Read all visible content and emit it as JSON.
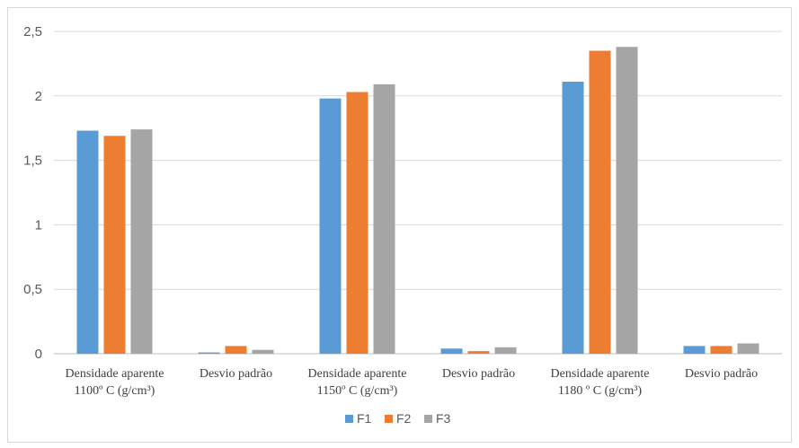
{
  "chart_data": {
    "type": "bar",
    "title": "",
    "xlabel": "",
    "ylabel": "",
    "ylim": [
      0,
      2.5
    ],
    "yticks": [
      "0",
      "0,5",
      "1",
      "1,5",
      "2",
      "2,5"
    ],
    "categories": [
      [
        "Densidade aparente",
        "1100º C (g/cm³)"
      ],
      [
        "Desvio padrão"
      ],
      [
        "Densidade aparente",
        "1150º C (g/cm³)"
      ],
      [
        "Desvio padrão"
      ],
      [
        "Densidade aparente",
        "1180 º C (g/cm³)"
      ],
      [
        "Desvio padrão"
      ]
    ],
    "series": [
      {
        "name": "F1",
        "color": "#5b9bd5",
        "values": [
          1.73,
          0.01,
          1.98,
          0.04,
          2.11,
          0.06
        ]
      },
      {
        "name": "F2",
        "color": "#ed7d31",
        "values": [
          1.69,
          0.06,
          2.03,
          0.02,
          2.35,
          0.06
        ]
      },
      {
        "name": "F3",
        "color": "#a5a5a5",
        "values": [
          1.74,
          0.03,
          2.09,
          0.05,
          2.38,
          0.08
        ]
      }
    ],
    "grid": true,
    "legend": "bottom-center"
  }
}
